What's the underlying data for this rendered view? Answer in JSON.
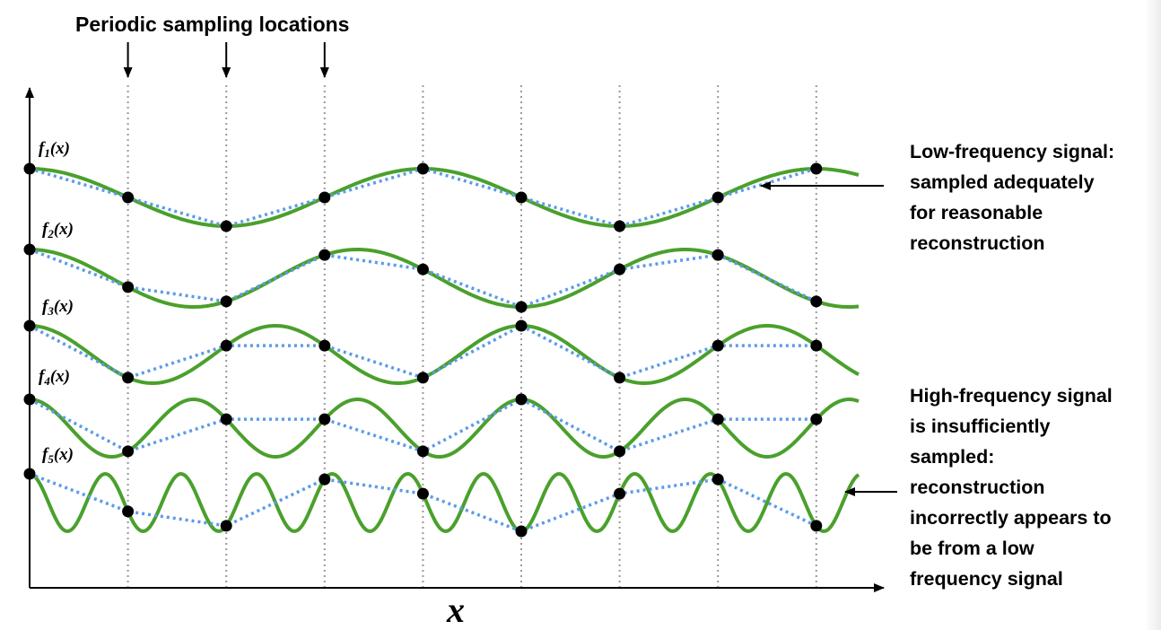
{
  "title": "Periodic sampling locations",
  "axis": {
    "x_label": "x"
  },
  "signals": [
    {
      "label_f": "f",
      "label_sub": "1",
      "label_arg": "(x)"
    },
    {
      "label_f": "f",
      "label_sub": "2",
      "label_arg": "(x)"
    },
    {
      "label_f": "f",
      "label_sub": "3",
      "label_arg": "(x)"
    },
    {
      "label_f": "f",
      "label_sub": "4",
      "label_arg": "(x)"
    },
    {
      "label_f": "f",
      "label_sub": "5",
      "label_arg": "(x)"
    }
  ],
  "annotations": {
    "low": "Low-frequency signal:\nsampled adequately\nfor reasonable\nreconstruction",
    "high": "High-frequency signal\nis insufficiently\nsampled:\nreconstruction\nincorrectly appears to\nbe from a low\nfrequency signal"
  },
  "colors": {
    "signal": "#4aa02c",
    "reconstruction": "#5b9bea",
    "sample_point": "#000000",
    "sample_line": "#9a9a9a"
  }
}
